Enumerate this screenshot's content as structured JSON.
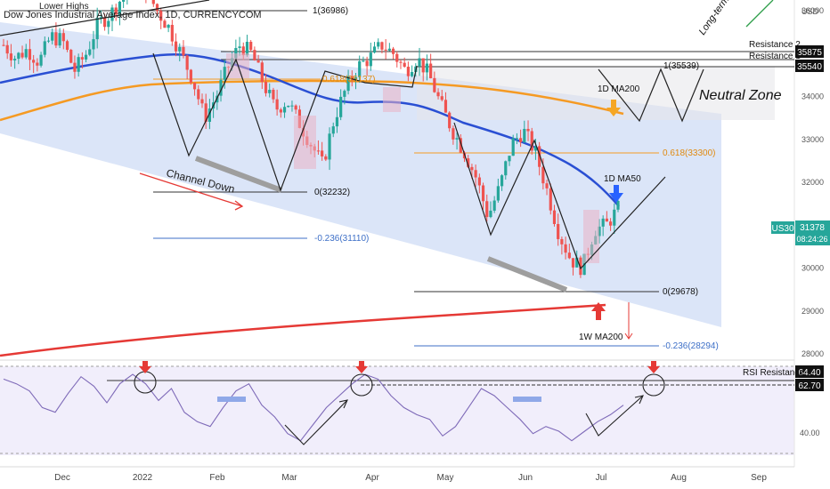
{
  "header": {
    "title": "Dow Jones Industrial Average Index, 1D, CURRENCYCOM",
    "overlay_label": "Lower Highs"
  },
  "price_scale": {
    "currency": "USD",
    "badge_symbol": "US30",
    "badge_price": "31378",
    "badge_countdown": "08:24:26",
    "resistance_values": [
      "35875",
      "35540"
    ]
  },
  "rsi_scale": {
    "labels": [
      "40.00"
    ],
    "badges": [
      "64.40",
      "62.70"
    ]
  },
  "time_axis": [
    "Dec",
    "2022",
    "Feb",
    "Mar",
    "Apr",
    "May",
    "Jun",
    "Jul",
    "Aug",
    "Sep"
  ],
  "annotations": {
    "channel_down": "Channel Down",
    "neutral_zone": "Neutral Zone",
    "resistance_2": "Resistance 2",
    "resistance_1": "Resistance 1",
    "ma50_label": "1D MA50",
    "ma200_label": "1D MA200",
    "w_ma200_label": "1W MA200",
    "rsi_resistance": "RSI Resistance",
    "long_term_reversal": "Long-term Bullish reversal",
    "fib_36986": "1(36986)",
    "fib_35539": "1(35539)",
    "fib_35137": "0.618(35137)",
    "fib_33300": "0.618(33300)",
    "fib_32232": "0(32232)",
    "fib_31110": "-0.236(31110)",
    "fib_29678": "0(29678)",
    "fib_28294": "-0.236(28294)"
  },
  "colors": {
    "channel_fill": "#cfdcf6",
    "ma50": "#2a4fd3",
    "ma200_daily": "#f59a23",
    "ma200_weekly": "#e53935",
    "candle_up": "#26a69a",
    "candle_down": "#ef5350",
    "rsi_line": "#7e6ab8",
    "rsi_band": "#f1eefb",
    "arrow_orange": "#f5a623",
    "arrow_blue": "#2962ff",
    "arrow_red": "#e53935",
    "accent_green": "#2e9e4a"
  },
  "chart_data": {
    "type": "candlestick",
    "title": "Dow Jones Industrial Average Index, 1D, CURRENCYCOM",
    "ylim": [
      27500,
      37000
    ],
    "y_ticks": [
      28000,
      29000,
      30000,
      31000,
      32000,
      33000,
      34000,
      35000,
      36000
    ],
    "x_labels": [
      "Dec",
      "2022",
      "Feb",
      "Mar",
      "Apr",
      "May",
      "Jun",
      "Jul",
      "Aug",
      "Sep"
    ],
    "close_path": [
      35200,
      34900,
      35100,
      34800,
      35400,
      35300,
      34600,
      35000,
      35700,
      35900,
      36300,
      36700,
      36500,
      36000,
      35600,
      35000,
      34400,
      33500,
      34000,
      34700,
      35200,
      35000,
      34300,
      33700,
      33900,
      33400,
      32900,
      32400,
      33500,
      34200,
      34700,
      34900,
      35200,
      35000,
      34600,
      34900,
      34500,
      33800,
      33200,
      32700,
      32100,
      31200,
      31900,
      32900,
      33200,
      32700,
      31800,
      30800,
      30200,
      30000,
      30900,
      31000,
      31378
    ],
    "ma50": [
      34400,
      34600,
      34800,
      35000,
      35200,
      35300,
      35300,
      35100,
      34900,
      34700,
      34500,
      34300,
      34300,
      34500,
      34800,
      34900,
      34600,
      34000,
      33400,
      33100,
      32800,
      32300,
      31900
    ],
    "ma200_daily": [
      34000,
      34400,
      34700,
      34900,
      35050,
      35100,
      35150,
      35150,
      35100,
      35000,
      34800,
      34500
    ],
    "ma200_weekly": [
      27900,
      28200,
      28500,
      28700,
      28950,
      29150,
      29300,
      29380
    ],
    "rsi": [
      62,
      60,
      57,
      50,
      48,
      56,
      63,
      59,
      52,
      60,
      64,
      60,
      53,
      58,
      48,
      44,
      42,
      50,
      57,
      60,
      51,
      46,
      39,
      36,
      43,
      50,
      55,
      60,
      64,
      62,
      55,
      50,
      47,
      45,
      38,
      42,
      50,
      58,
      55,
      50,
      45,
      39,
      42,
      40,
      36,
      40,
      44,
      47,
      51
    ],
    "rsi_levels": [
      64.4,
      62.7
    ],
    "fib_levels": {
      "1(36986)": 36986,
      "1(35539)": 35539,
      "0.618(35137)": 35137,
      "0.618(33300)": 33300,
      "0(32232)": 32232,
      "-0.236(31110)": 31110,
      "0(29678)": 29678,
      "-0.236(28294)": 28294
    }
  }
}
